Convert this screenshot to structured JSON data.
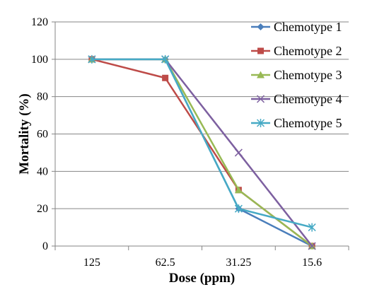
{
  "chart_data": {
    "type": "line",
    "title": "",
    "xlabel": "Dose (ppm)",
    "ylabel": "Mortality (%)",
    "categories": [
      "125",
      "62.5",
      "31.25",
      "15.6"
    ],
    "ylim": [
      0,
      120
    ],
    "yticks": [
      0,
      20,
      40,
      60,
      80,
      100,
      120
    ],
    "grid": true,
    "legend_position": "top-right",
    "series": [
      {
        "name": "Chemotype 1",
        "values": [
          100,
          100,
          20,
          0
        ],
        "color": "#4A7EBB",
        "marker": "diamond"
      },
      {
        "name": "Chemotype 2",
        "values": [
          100,
          90,
          30,
          0
        ],
        "color": "#BE4B48",
        "marker": "square"
      },
      {
        "name": "Chemotype 3",
        "values": [
          100,
          100,
          30,
          0
        ],
        "color": "#98B954",
        "marker": "triangle"
      },
      {
        "name": "Chemotype 4",
        "values": [
          100,
          100,
          50,
          0
        ],
        "color": "#7D60A0",
        "marker": "x"
      },
      {
        "name": "Chemotype 5",
        "values": [
          100,
          100,
          20,
          10
        ],
        "color": "#46AAC5",
        "marker": "asterisk"
      }
    ]
  }
}
